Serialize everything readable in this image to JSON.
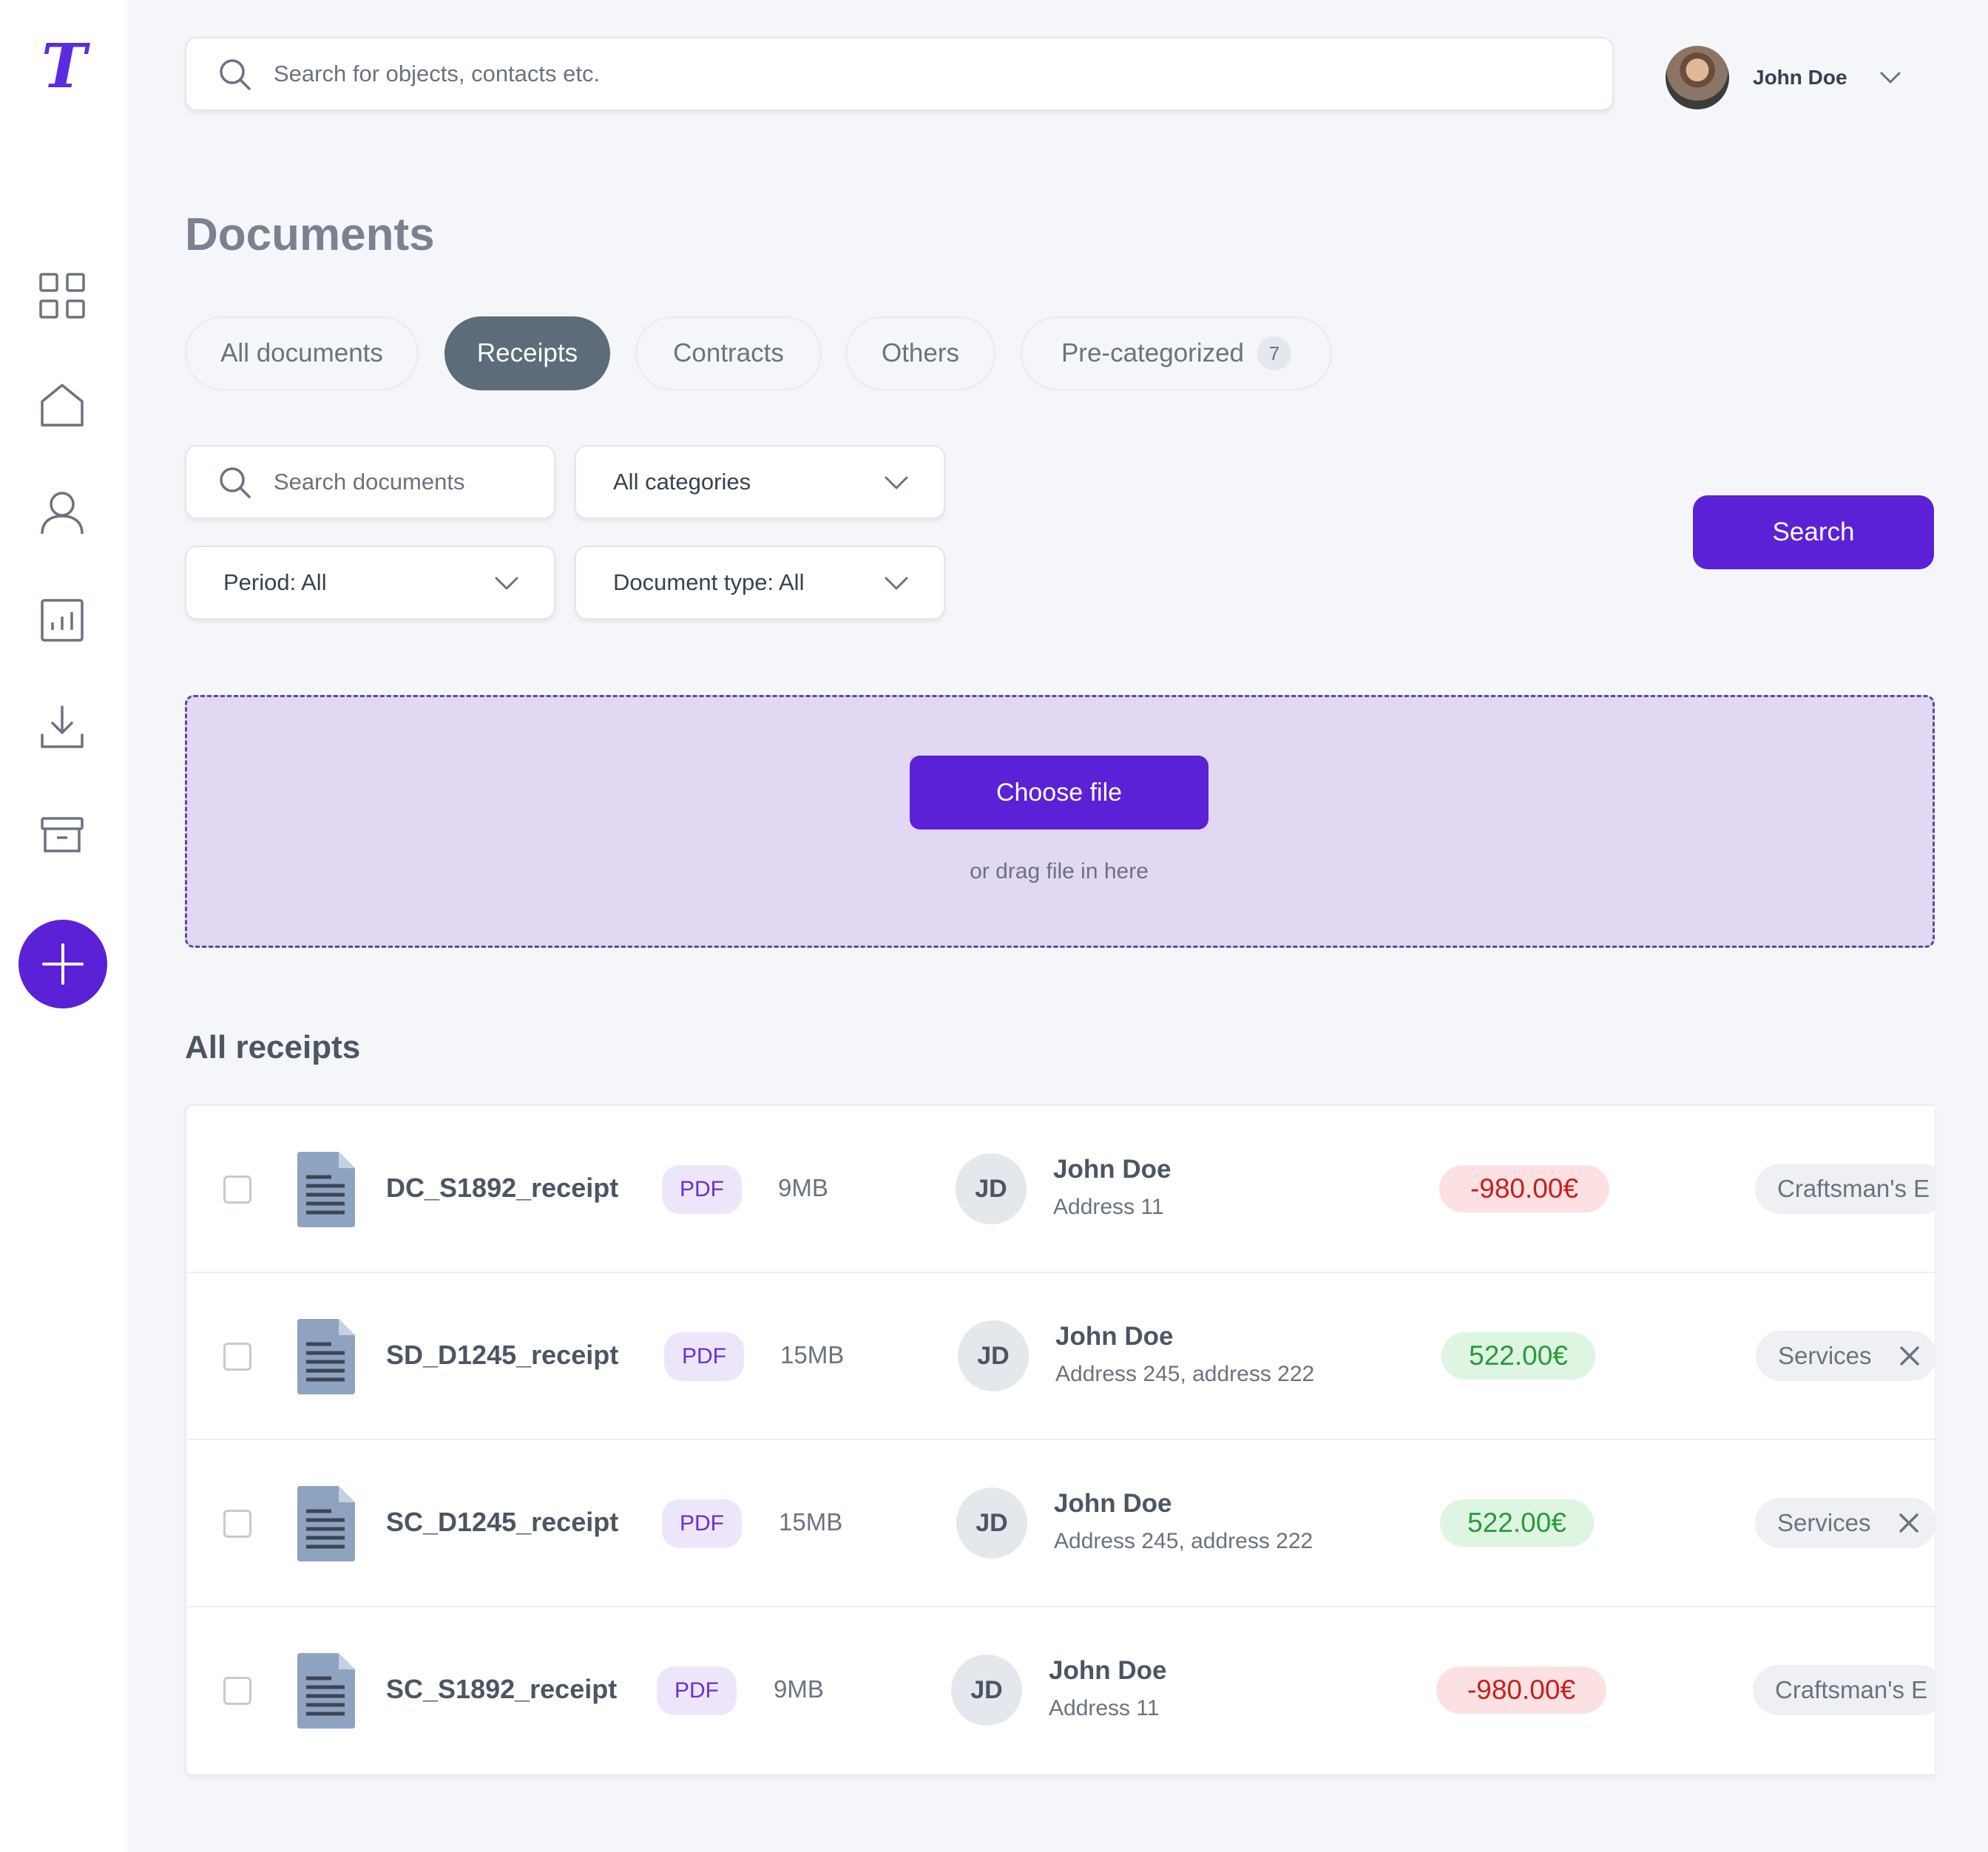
{
  "app": {
    "logo_letter": "T"
  },
  "sidebar": {
    "icons": [
      "dashboard-grid-icon",
      "home-icon",
      "user-icon",
      "chart-icon",
      "download-icon",
      "archive-icon"
    ],
    "add_icon": "plus-icon"
  },
  "header": {
    "search_placeholder": "Search for objects, contacts etc.",
    "user_name": "John Doe"
  },
  "page": {
    "title": "Documents"
  },
  "tabs": [
    {
      "label": "All documents",
      "active": false
    },
    {
      "label": "Receipts",
      "active": true
    },
    {
      "label": "Contracts",
      "active": false
    },
    {
      "label": "Others",
      "active": false
    },
    {
      "label": "Pre-categorized",
      "active": false,
      "count": "7"
    }
  ],
  "filters": {
    "search_placeholder": "Search documents",
    "category": "All categories",
    "period": "Period: All",
    "document_type": "Document type: All",
    "search_button": "Search"
  },
  "upload": {
    "button_label": "Choose file",
    "hint": "or drag file in here"
  },
  "receipts": {
    "title": "All receipts",
    "rows": [
      {
        "name": "DC_S1892_receipt",
        "type": "PDF",
        "size": "9MB",
        "initials": "JD",
        "contact": "John Doe",
        "address": "Address 11",
        "amount": "-980.00€",
        "amount_sign": "negative",
        "category": "Craftsman's E",
        "removable": false
      },
      {
        "name": "SD_D1245_receipt",
        "type": "PDF",
        "size": "15MB",
        "initials": "JD",
        "contact": "John Doe",
        "address": "Address 245, address 222",
        "amount": "522.00€",
        "amount_sign": "positive",
        "category": "Services",
        "removable": true
      },
      {
        "name": "SC_D1245_receipt",
        "type": "PDF",
        "size": "15MB",
        "initials": "JD",
        "contact": "John Doe",
        "address": "Address 245, address 222",
        "amount": "522.00€",
        "amount_sign": "positive",
        "category": "Services",
        "removable": true
      },
      {
        "name": "SC_S1892_receipt",
        "type": "PDF",
        "size": "9MB",
        "initials": "JD",
        "contact": "John Doe",
        "address": "Address 11",
        "amount": "-980.00€",
        "amount_sign": "negative",
        "category": "Craftsman's E",
        "removable": false
      }
    ]
  },
  "colors": {
    "primary": "#5b21d6",
    "tab_active": "#5e6b7a",
    "dropzone": "#e2d8f3",
    "negative": "#c81e1e",
    "positive": "#2a9a3c"
  }
}
